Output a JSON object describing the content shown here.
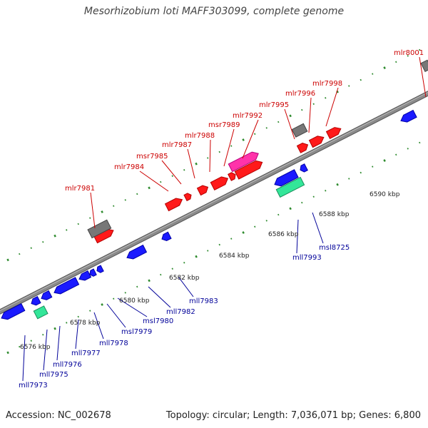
{
  "title": "Mesorhizobium loti MAFF303099, complete genome",
  "footer": {
    "accession": "Accession: NC_002678",
    "summary": "Topology: circular; Length: 7,036,071 bp; Genes: 6,800"
  },
  "colors": {
    "backbone": "#8a8a8a",
    "dots": "#2e8b2e",
    "upper_label": "#cc0000",
    "lower_label": "#000099",
    "red": "#ff1a1a",
    "blue": "#1a1aff",
    "gray": "#777777",
    "magenta": "#ff33aa",
    "cyan": "#33e699"
  },
  "scale_ticks": [
    "6576 kbp",
    "6578 kbp",
    "6580 kbp",
    "6582 kbp",
    "6584 kbp",
    "6586 kbp",
    "6588 kbp",
    "6590 kbp"
  ],
  "upper_labels": [
    "mlr7981",
    "mlr7984",
    "msr7985",
    "mlr7987",
    "mlr7988",
    "msr7989",
    "mlr7992",
    "mlr7995",
    "mlr7996",
    "mlr7998",
    "mlr8001"
  ],
  "lower_labels": [
    "mll7973",
    "mll7975",
    "mll7976",
    "mll7977",
    "mll7978",
    "msl7979",
    "msl7980",
    "mll7982",
    "mll7983",
    "mll7993",
    "msl8725"
  ]
}
